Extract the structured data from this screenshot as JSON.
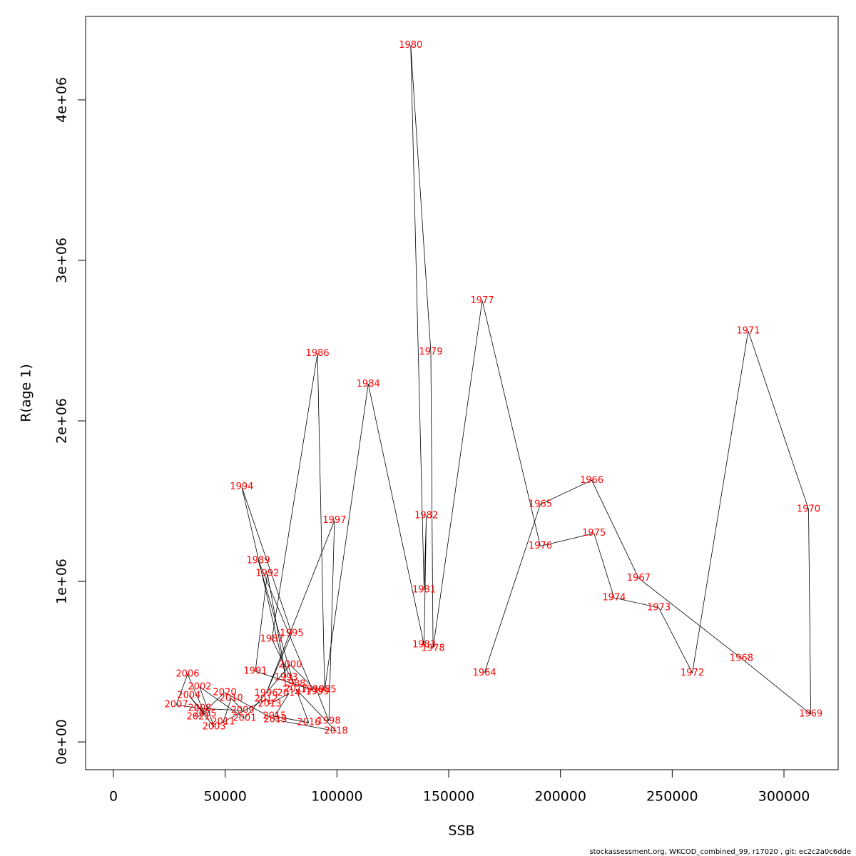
{
  "chart_data": {
    "type": "line",
    "xlabel": "SSB",
    "ylabel": "R(age 1)",
    "footer": "stockassessment.org, WKCOD_combined_99, r17020 , git: ec2c2a0c6dde",
    "point_labels": [
      "1964",
      "1965",
      "1966",
      "1967",
      "1968",
      "1969",
      "1970",
      "1971",
      "1972",
      "1973",
      "1974",
      "1975",
      "1976",
      "1977",
      "1978",
      "1979",
      "1980",
      "1981",
      "1982",
      "1983",
      "1984",
      "1985",
      "1986",
      "1987",
      "1988",
      "1989",
      "1990",
      "1991",
      "1992",
      "1993",
      "1994",
      "1995",
      "1996",
      "1997",
      "1998",
      "1999",
      "2000",
      "2001",
      "2002",
      "2003",
      "2004",
      "2005",
      "2006",
      "2007",
      "2008",
      "2009",
      "2010",
      "2011",
      "2012",
      "2013",
      "2014",
      "2015",
      "2016",
      "2017",
      "2018",
      "2019",
      "2020",
      "2021"
    ],
    "x": [
      166000,
      191000,
      214000,
      235000,
      281000,
      312000,
      311000,
      284000,
      259000,
      244000,
      224000,
      215000,
      191000,
      165000,
      143000,
      142000,
      133000,
      139000,
      140000,
      139000,
      114000,
      94500,
      91300,
      70900,
      80700,
      64800,
      89000,
      63500,
      68900,
      77200,
      57400,
      79800,
      68300,
      98900,
      96400,
      91300,
      79100,
      58700,
      38600,
      45000,
      33800,
      40900,
      33200,
      28100,
      38600,
      57800,
      52700,
      49100,
      68300,
      69900,
      78500,
      72100,
      87400,
      81700,
      99600,
      72400,
      49800,
      38000
    ],
    "values": [
      430000,
      1480000,
      1630000,
      1020000,
      520000,
      173000,
      1450000,
      2560000,
      430000,
      836000,
      898000,
      1300000,
      1220000,
      2750000,
      582000,
      2430000,
      4340000,
      947000,
      1410000,
      604000,
      2230000,
      324000,
      2420000,
      640000,
      360000,
      1130000,
      324000,
      440000,
      1050000,
      400000,
      1590000,
      676000,
      302000,
      1380000,
      129000,
      311000,
      480000,
      147000,
      342000,
      93000,
      289000,
      173000,
      422000,
      231000,
      209000,
      196000,
      271000,
      124000,
      267000,
      236000,
      302000,
      160000,
      120000,
      329000,
      67000,
      138000,
      307000,
      156000
    ],
    "color": "#000000",
    "label_color": "#ff0000",
    "xlim": [
      -12450,
      324250
    ],
    "ylim": [
      -173000,
      4520000
    ],
    "xticks": [
      0,
      50000,
      100000,
      150000,
      200000,
      250000,
      300000
    ],
    "yticks": [
      {
        "value": 0,
        "label": "0e+00"
      },
      {
        "value": 1000000,
        "label": "1e+06"
      },
      {
        "value": 2000000,
        "label": "2e+06"
      },
      {
        "value": 3000000,
        "label": "3e+06"
      },
      {
        "value": 4000000,
        "label": "4e+06"
      }
    ]
  }
}
